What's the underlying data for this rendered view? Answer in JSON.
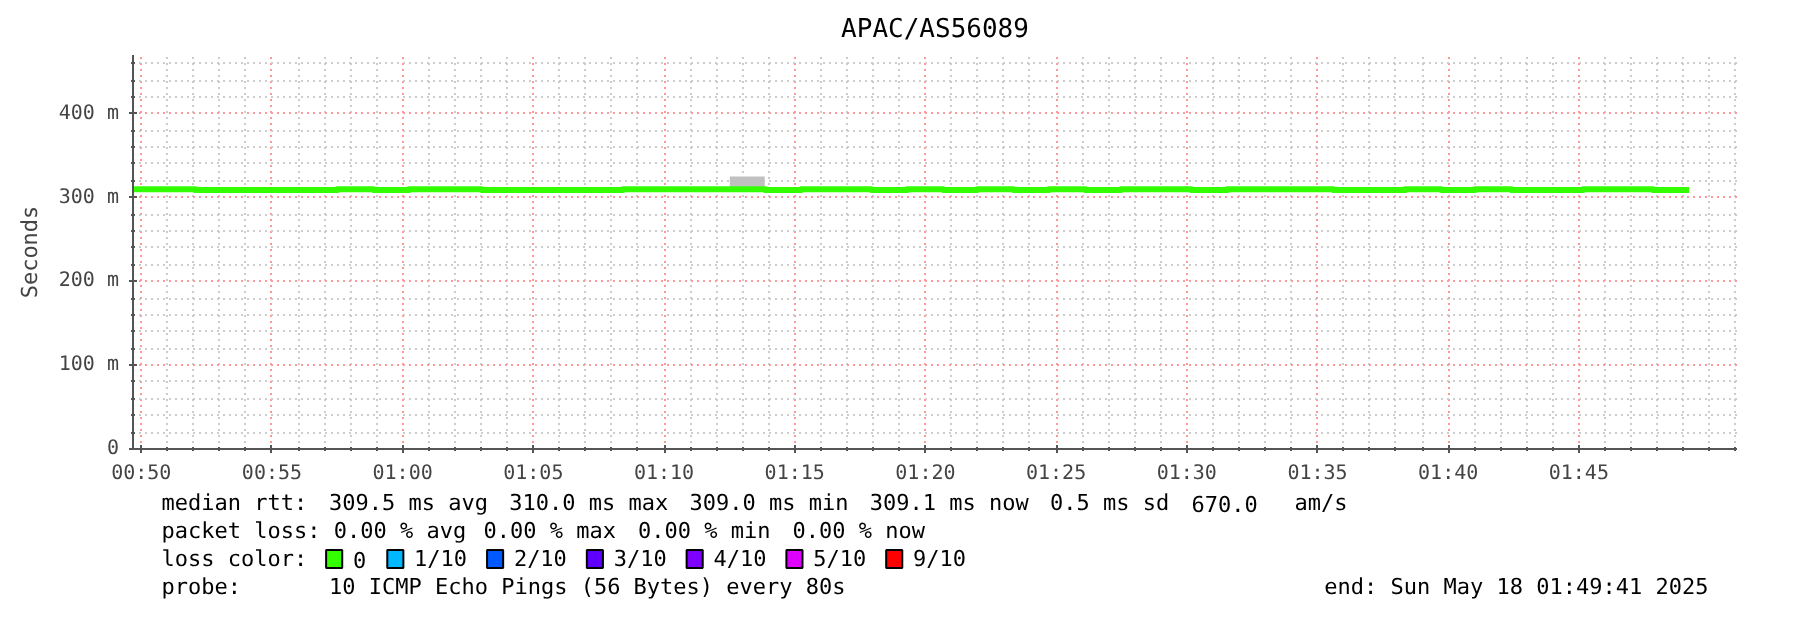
{
  "chart_data": {
    "type": "step",
    "title": "APAC/AS56089",
    "ylabel": "Seconds",
    "legend_title": "loss color:",
    "legend": "bottom",
    "grid": true,
    "xlim": [
      "2025-05-18T00:49:41",
      "2025-05-18T01:51:03"
    ],
    "ylim": [
      0,
      470
    ],
    "yticks": [
      {
        "value": 0,
        "label": "0"
      },
      {
        "value": 20,
        "label": null
      },
      {
        "value": 40,
        "label": null
      },
      {
        "value": 60,
        "label": null
      },
      {
        "value": 80,
        "label": null
      },
      {
        "value": 100,
        "label": "100 m"
      },
      {
        "value": 120,
        "label": null
      },
      {
        "value": 140,
        "label": null
      },
      {
        "value": 160,
        "label": null
      },
      {
        "value": 180,
        "label": null
      },
      {
        "value": 200,
        "label": "200 m"
      },
      {
        "value": 220,
        "label": null
      },
      {
        "value": 240,
        "label": null
      },
      {
        "value": 260,
        "label": null
      },
      {
        "value": 280,
        "label": null
      },
      {
        "value": 300,
        "label": "300 m"
      },
      {
        "value": 320,
        "label": null
      },
      {
        "value": 340,
        "label": null
      },
      {
        "value": 360,
        "label": null
      },
      {
        "value": 380,
        "label": null
      },
      {
        "value": 400,
        "label": "400 m"
      },
      {
        "value": 420,
        "label": null
      },
      {
        "value": 440,
        "label": null
      },
      {
        "value": 460,
        "label": null
      }
    ],
    "xticks": [
      {
        "value": "2025-05-18T00:50",
        "label": "00:50"
      },
      {
        "value": "2025-05-18T00:55",
        "label": "00:55"
      },
      {
        "value": "2025-05-18T01:00",
        "label": "01:00"
      },
      {
        "value": "2025-05-18T01:05",
        "label": "01:05"
      },
      {
        "value": "2025-05-18T01:10",
        "label": "01:10"
      },
      {
        "value": "2025-05-18T01:15",
        "label": "01:15"
      },
      {
        "value": "2025-05-18T01:20",
        "label": "01:20"
      },
      {
        "value": "2025-05-18T01:25",
        "label": "01:25"
      },
      {
        "value": "2025-05-18T01:30",
        "label": "01:30"
      },
      {
        "value": "2025-05-18T01:35",
        "label": "01:35"
      },
      {
        "value": "2025-05-18T01:40",
        "label": "01:40"
      },
      {
        "value": "2025-05-18T01:45",
        "label": "01:45"
      },
      {
        "value": "2025-05-18T00:51",
        "label": null
      },
      {
        "value": "2025-05-18T00:52",
        "label": null
      },
      {
        "value": "2025-05-18T00:53",
        "label": null
      },
      {
        "value": "2025-05-18T00:54",
        "label": null
      },
      {
        "value": "2025-05-18T00:56",
        "label": null
      },
      {
        "value": "2025-05-18T00:57",
        "label": null
      },
      {
        "value": "2025-05-18T00:58",
        "label": null
      },
      {
        "value": "2025-05-18T00:59",
        "label": null
      },
      {
        "value": "2025-05-18T01:01",
        "label": null
      },
      {
        "value": "2025-05-18T01:02",
        "label": null
      },
      {
        "value": "2025-05-18T01:03",
        "label": null
      },
      {
        "value": "2025-05-18T01:04",
        "label": null
      },
      {
        "value": "2025-05-18T01:06",
        "label": null
      },
      {
        "value": "2025-05-18T01:07",
        "label": null
      },
      {
        "value": "2025-05-18T01:08",
        "label": null
      },
      {
        "value": "2025-05-18T01:09",
        "label": null
      },
      {
        "value": "2025-05-18T01:11",
        "label": null
      },
      {
        "value": "2025-05-18T01:12",
        "label": null
      },
      {
        "value": "2025-05-18T01:13",
        "label": null
      },
      {
        "value": "2025-05-18T01:14",
        "label": null
      },
      {
        "value": "2025-05-18T01:16",
        "label": null
      },
      {
        "value": "2025-05-18T01:17",
        "label": null
      },
      {
        "value": "2025-05-18T01:18",
        "label": null
      },
      {
        "value": "2025-05-18T01:19",
        "label": null
      },
      {
        "value": "2025-05-18T01:21",
        "label": null
      },
      {
        "value": "2025-05-18T01:22",
        "label": null
      },
      {
        "value": "2025-05-18T01:23",
        "label": null
      },
      {
        "value": "2025-05-18T01:24",
        "label": null
      },
      {
        "value": "2025-05-18T01:26",
        "label": null
      },
      {
        "value": "2025-05-18T01:27",
        "label": null
      },
      {
        "value": "2025-05-18T01:28",
        "label": null
      },
      {
        "value": "2025-05-18T01:29",
        "label": null
      },
      {
        "value": "2025-05-18T01:31",
        "label": null
      },
      {
        "value": "2025-05-18T01:32",
        "label": null
      },
      {
        "value": "2025-05-18T01:33",
        "label": null
      },
      {
        "value": "2025-05-18T01:34",
        "label": null
      },
      {
        "value": "2025-05-18T01:36",
        "label": null
      },
      {
        "value": "2025-05-18T01:37",
        "label": null
      },
      {
        "value": "2025-05-18T01:38",
        "label": null
      },
      {
        "value": "2025-05-18T01:39",
        "label": null
      },
      {
        "value": "2025-05-18T01:41",
        "label": null
      },
      {
        "value": "2025-05-18T01:42",
        "label": null
      },
      {
        "value": "2025-05-18T01:43",
        "label": null
      },
      {
        "value": "2025-05-18T01:44",
        "label": null
      },
      {
        "value": "2025-05-18T01:46",
        "label": null
      },
      {
        "value": "2025-05-18T01:47",
        "label": null
      },
      {
        "value": "2025-05-18T01:48",
        "label": null
      },
      {
        "value": "2025-05-18T01:49",
        "label": null
      },
      {
        "value": "2025-05-18T01:50",
        "label": null
      },
      {
        "value": "2025-05-18T01:51",
        "label": null
      }
    ],
    "series": [
      {
        "type": "bar",
        "color": "#c0c0c0",
        "x": [
          "2025-05-18T01:13:11"
        ],
        "base": [
          311
        ],
        "values": [
          14
        ]
      },
      {
        "name": "0",
        "color": "#33ff00",
        "x": [
          "2025-05-18T00:49:42",
          "2025-05-18T00:52:04",
          "2025-05-18T00:57:30",
          "2025-05-18T00:58:53",
          "2025-05-18T01:00:15",
          "2025-05-18T01:03:01",
          "2025-05-18T01:08:26",
          "2025-05-18T01:13:52",
          "2025-05-18T01:15:15",
          "2025-05-18T01:17:56",
          "2025-05-18T01:19:18",
          "2025-05-18T01:20:41",
          "2025-05-18T01:21:59",
          "2025-05-18T01:23:22",
          "2025-05-18T01:24:44",
          "2025-05-18T01:26:07",
          "2025-05-18T01:27:29",
          "2025-05-18T01:30:10",
          "2025-05-18T01:31:33",
          "2025-05-18T01:35:36",
          "2025-05-18T01:38:21",
          "2025-05-18T01:39:44",
          "2025-05-18T01:41:02",
          "2025-05-18T01:42:25",
          "2025-05-18T01:45:10",
          "2025-05-18T01:47:50",
          "2025-05-18T01:49:13"
        ],
        "values": [
          310,
          309,
          310,
          309,
          310,
          309,
          310,
          309,
          310,
          309,
          310,
          309,
          310,
          309,
          310,
          309,
          310,
          309,
          310,
          309,
          310,
          309,
          310,
          309,
          310,
          309,
          309
        ]
      },
      {
        "name": "1/10",
        "color": "#00b8ff"
      },
      {
        "name": "2/10",
        "color": "#0059ff"
      },
      {
        "name": "3/10",
        "color": "#5e00ff"
      },
      {
        "name": "4/10",
        "color": "#7e00ff"
      },
      {
        "name": "5/10",
        "color": "#dd00ff"
      },
      {
        "name": "9/10",
        "color": "#ff0000"
      }
    ],
    "annotations": [
      "median rtt:  309.5 ms avg  310.0 ms max  309.0 ms min  309.1 ms now  0.5 ms sd  670.0   am/s",
      "packet loss: 0.00 % avg  0.00 % max  0.00 % min  0.00 % now",
      "probe:       10 ICMP Echo Pings (56 Bytes) every 80s",
      "end: Sun May 18 01:49:41 2025"
    ]
  }
}
